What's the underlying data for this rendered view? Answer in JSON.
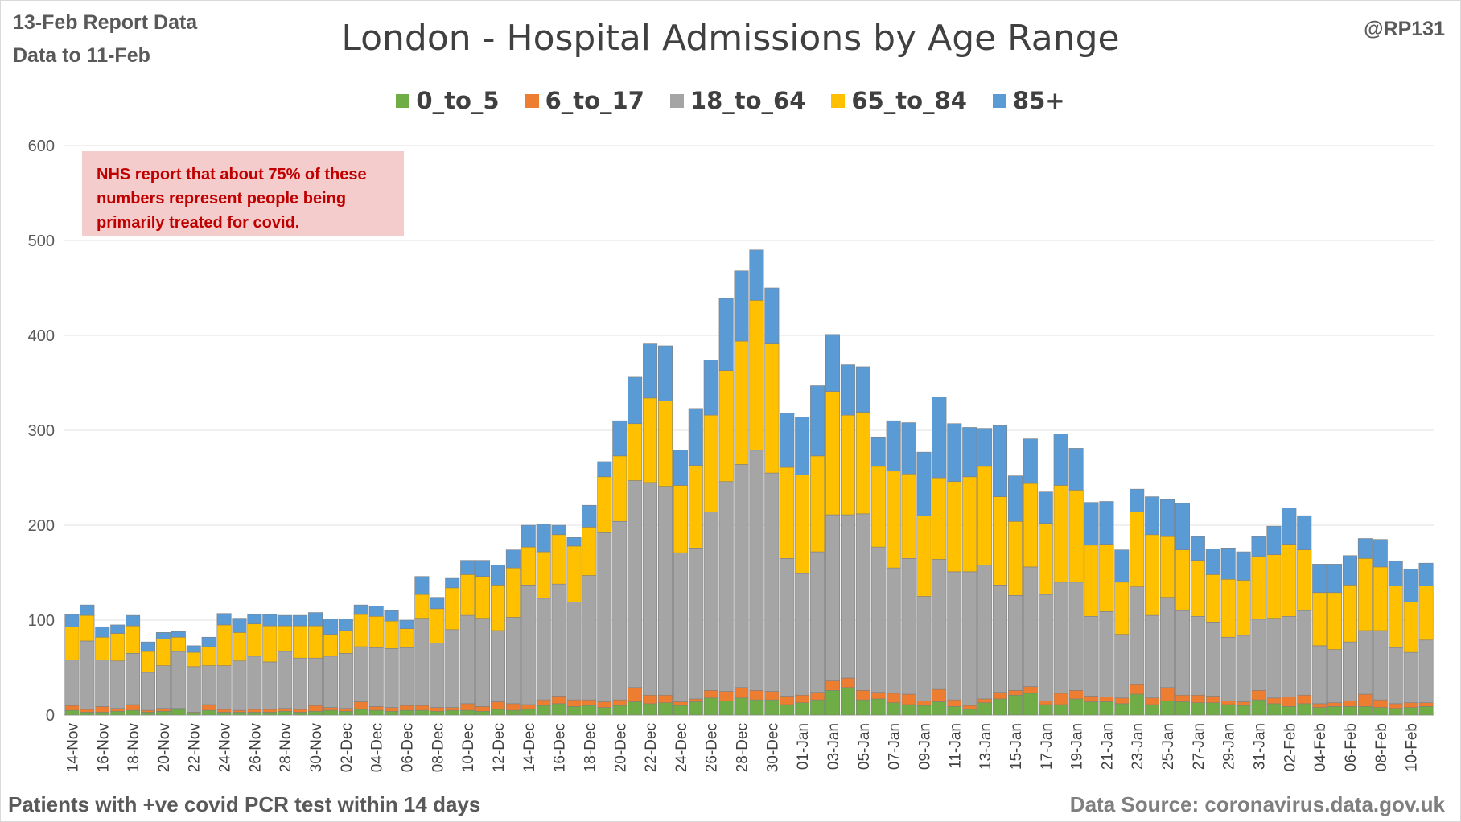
{
  "report": {
    "line1": "13-Feb Report Data",
    "line2": "Data to 11-Feb",
    "handle": "@RP131",
    "footer_left": "Patients with  +ve covid PCR test within 14 days",
    "footer_right": "Data Source: coronavirus.data.gov.uk",
    "note": "NHS report that about 75% of these numbers represent people being primarily treated for covid."
  },
  "chart_data": {
    "type": "bar",
    "stacked": true,
    "title": "London - Hospital Admissions by Age Range",
    "xlabel": "",
    "ylabel": "",
    "ylim": [
      0,
      600
    ],
    "yticks": [
      0,
      100,
      200,
      300,
      400,
      500,
      600
    ],
    "grid": true,
    "legend_position": "top",
    "categories": [
      "14-Nov",
      "15-Nov",
      "16-Nov",
      "17-Nov",
      "18-Nov",
      "19-Nov",
      "20-Nov",
      "21-Nov",
      "22-Nov",
      "23-Nov",
      "24-Nov",
      "25-Nov",
      "26-Nov",
      "27-Nov",
      "28-Nov",
      "29-Nov",
      "30-Nov",
      "01-Dec",
      "02-Dec",
      "03-Dec",
      "04-Dec",
      "05-Dec",
      "06-Dec",
      "07-Dec",
      "08-Dec",
      "09-Dec",
      "10-Dec",
      "11-Dec",
      "12-Dec",
      "13-Dec",
      "14-Dec",
      "15-Dec",
      "16-Dec",
      "17-Dec",
      "18-Dec",
      "19-Dec",
      "20-Dec",
      "21-Dec",
      "22-Dec",
      "23-Dec",
      "24-Dec",
      "25-Dec",
      "26-Dec",
      "27-Dec",
      "28-Dec",
      "29-Dec",
      "30-Dec",
      "31-Dec",
      "01-Jan",
      "02-Jan",
      "03-Jan",
      "04-Jan",
      "05-Jan",
      "06-Jan",
      "07-Jan",
      "08-Jan",
      "09-Jan",
      "10-Jan",
      "11-Jan",
      "12-Jan",
      "13-Jan",
      "14-Jan",
      "15-Jan",
      "16-Jan",
      "17-Jan",
      "18-Jan",
      "19-Jan",
      "20-Jan",
      "21-Jan",
      "22-Jan",
      "23-Jan",
      "24-Jan",
      "25-Jan",
      "26-Jan",
      "27-Jan",
      "28-Jan",
      "29-Jan",
      "30-Jan",
      "31-Jan",
      "01-Feb",
      "02-Feb",
      "03-Feb",
      "04-Feb",
      "05-Feb",
      "06-Feb",
      "07-Feb",
      "08-Feb",
      "09-Feb",
      "10-Feb",
      "11-Feb"
    ],
    "tick_labels": [
      "14-Nov",
      "16-Nov",
      "18-Nov",
      "20-Nov",
      "22-Nov",
      "24-Nov",
      "26-Nov",
      "28-Nov",
      "30-Nov",
      "02-Dec",
      "04-Dec",
      "06-Dec",
      "08-Dec",
      "10-Dec",
      "12-Dec",
      "14-Dec",
      "16-Dec",
      "18-Dec",
      "20-Dec",
      "22-Dec",
      "24-Dec",
      "26-Dec",
      "28-Dec",
      "30-Dec",
      "01-Jan",
      "03-Jan",
      "05-Jan",
      "07-Jan",
      "09-Jan",
      "11-Jan",
      "13-Jan",
      "15-Jan",
      "17-Jan",
      "19-Jan",
      "21-Jan",
      "23-Jan",
      "25-Jan",
      "27-Jan",
      "29-Jan",
      "31-Jan",
      "02-Feb",
      "04-Feb",
      "06-Feb",
      "08-Feb",
      "10-Feb"
    ],
    "series": [
      {
        "name": "0_to_5",
        "color": "#70ad47",
        "values": [
          5,
          3,
          3,
          4,
          5,
          3,
          4,
          6,
          2,
          5,
          3,
          3,
          3,
          3,
          4,
          3,
          4,
          5,
          4,
          6,
          5,
          4,
          5,
          5,
          4,
          5,
          5,
          4,
          6,
          5,
          6,
          10,
          12,
          9,
          10,
          8,
          10,
          14,
          12,
          13,
          10,
          14,
          18,
          15,
          18,
          16,
          16,
          11,
          13,
          16,
          26,
          29,
          16,
          17,
          13,
          11,
          10,
          14,
          9,
          6,
          13,
          17,
          21,
          23,
          11,
          11,
          17,
          14,
          14,
          12,
          22,
          11,
          15,
          14,
          13,
          13,
          11,
          10,
          16,
          12,
          9,
          12,
          8,
          9,
          9,
          9,
          8,
          7,
          8,
          9
        ]
      },
      {
        "name": "6_to_17",
        "color": "#ed7d31",
        "values": [
          5,
          3,
          6,
          3,
          6,
          2,
          3,
          1,
          1,
          6,
          3,
          2,
          3,
          3,
          3,
          3,
          6,
          3,
          3,
          8,
          4,
          4,
          5,
          5,
          4,
          3,
          7,
          5,
          8,
          7,
          5,
          6,
          8,
          7,
          6,
          6,
          6,
          15,
          9,
          8,
          4,
          3,
          8,
          10,
          11,
          10,
          9,
          9,
          8,
          8,
          10,
          10,
          10,
          7,
          10,
          11,
          5,
          13,
          7,
          4,
          4,
          7,
          5,
          7,
          4,
          12,
          9,
          6,
          5,
          6,
          10,
          7,
          14,
          7,
          8,
          7,
          4,
          4,
          10,
          6,
          10,
          9,
          4,
          4,
          6,
          13,
          8,
          5,
          5,
          4
        ]
      },
      {
        "name": "18_to_64",
        "color": "#a5a5a5",
        "values": [
          48,
          72,
          49,
          50,
          54,
          40,
          45,
          60,
          48,
          41,
          46,
          52,
          56,
          50,
          60,
          54,
          50,
          54,
          58,
          58,
          62,
          62,
          61,
          92,
          68,
          82,
          93,
          93,
          75,
          91,
          126,
          107,
          118,
          103,
          131,
          178,
          188,
          218,
          224,
          220,
          157,
          159,
          188,
          221,
          235,
          253,
          230,
          145,
          128,
          148,
          175,
          172,
          186,
          153,
          132,
          143,
          110,
          137,
          135,
          141,
          141,
          113,
          100,
          126,
          112,
          117,
          114,
          84,
          90,
          67,
          103,
          87,
          95,
          89,
          83,
          78,
          67,
          70,
          75,
          84,
          85,
          89,
          61,
          56,
          62,
          67,
          73,
          59,
          53,
          66
        ]
      },
      {
        "name": "65_to_84",
        "color": "#ffc000",
        "values": [
          35,
          27,
          24,
          29,
          29,
          22,
          28,
          15,
          15,
          20,
          43,
          30,
          34,
          38,
          27,
          34,
          34,
          23,
          24,
          34,
          33,
          29,
          20,
          25,
          36,
          44,
          43,
          44,
          48,
          52,
          40,
          49,
          52,
          59,
          51,
          59,
          69,
          60,
          89,
          90,
          71,
          87,
          102,
          117,
          130,
          158,
          136,
          96,
          104,
          101,
          130,
          105,
          107,
          85,
          102,
          89,
          85,
          86,
          95,
          100,
          104,
          93,
          78,
          88,
          75,
          102,
          97,
          75,
          71,
          55,
          79,
          85,
          64,
          64,
          59,
          50,
          61,
          58,
          66,
          67,
          76,
          64,
          56,
          60,
          60,
          76,
          67,
          65,
          53,
          57
        ]
      },
      {
        "name": "85+",
        "color": "#5b9bd5",
        "values": [
          13,
          11,
          11,
          9,
          11,
          10,
          7,
          6,
          7,
          10,
          12,
          15,
          10,
          12,
          11,
          11,
          14,
          16,
          12,
          10,
          11,
          11,
          9,
          19,
          12,
          10,
          15,
          17,
          21,
          19,
          23,
          29,
          10,
          9,
          23,
          16,
          37,
          49,
          57,
          58,
          37,
          60,
          58,
          76,
          74,
          53,
          59,
          57,
          61,
          74,
          60,
          53,
          48,
          31,
          53,
          54,
          67,
          85,
          61,
          52,
          40,
          75,
          48,
          47,
          33,
          54,
          44,
          45,
          45,
          34,
          24,
          40,
          39,
          49,
          25,
          27,
          33,
          30,
          21,
          30,
          38,
          36,
          30,
          30,
          31,
          21,
          29,
          26,
          35,
          24
        ]
      }
    ]
  }
}
